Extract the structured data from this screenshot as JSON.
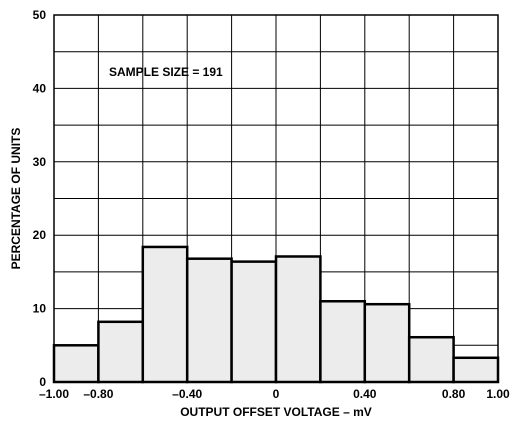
{
  "chart_data": {
    "type": "bar",
    "subtype": "histogram",
    "bin_edges": [
      -1.0,
      -0.8,
      -0.6,
      -0.4,
      -0.2,
      0.0,
      0.2,
      0.4,
      0.6,
      0.8,
      1.0
    ],
    "values": [
      5.0,
      8.2,
      18.4,
      16.8,
      16.4,
      17.1,
      11.0,
      10.6,
      6.1,
      3.3
    ],
    "xlabel": "OUTPUT OFFSET VOLTAGE – mV",
    "ylabel": "PERCENTAGE OF UNITS",
    "xlim": [
      -1.0,
      1.0
    ],
    "ylim": [
      0,
      50
    ],
    "x_ticks": [
      "–1.00",
      "–0.80",
      "–0.40",
      "0",
      "0.40",
      "0.80",
      "1.00"
    ],
    "x_tick_values": [
      -1.0,
      -0.8,
      -0.4,
      0.0,
      0.4,
      0.8,
      1.0
    ],
    "y_ticks": [
      "0",
      "10",
      "20",
      "30",
      "40",
      "50"
    ],
    "y_tick_values": [
      0,
      10,
      20,
      30,
      40,
      50
    ],
    "x_grid_step": 0.2,
    "y_grid_step": 5,
    "grid": true,
    "annotation": "SAMPLE SIZE = 191",
    "bar_fill": "#ececec",
    "bar_stroke": "#000000"
  }
}
